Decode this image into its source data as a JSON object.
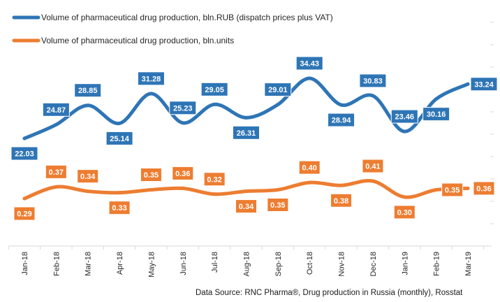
{
  "chart_data": {
    "type": "line",
    "categories": [
      "Jan-18",
      "Feb-18",
      "Mar-18",
      "Apr-18",
      "May-18",
      "Jun-18",
      "Jul-18",
      "Aug-18",
      "Sep-18",
      "Oct-18",
      "Nov-18",
      "Dec-18",
      "Jan-19",
      "Feb-19",
      "Mar-19"
    ],
    "series": [
      {
        "name": "Volume of pharmaceutical drug production, bln.RUB (dispatch prices plus VAT)",
        "color": "#2e75b6",
        "values": [
          22.03,
          24.87,
          28.85,
          25.14,
          31.28,
          25.23,
          29.05,
          26.31,
          29.01,
          34.43,
          28.94,
          30.83,
          23.46,
          30.16,
          33.24
        ],
        "labels": [
          "22.03",
          "24.87",
          "28.85",
          "25.14",
          "31.28",
          "25.23",
          "29.05",
          "26.31",
          "29.01",
          "34.43",
          "28.94",
          "30.83",
          "23.46",
          "30.16",
          "33.24"
        ]
      },
      {
        "name": "Volume of pharmaceutical drug production, bln.units",
        "color": "#ed7d31",
        "values": [
          0.29,
          0.37,
          0.34,
          0.33,
          0.35,
          0.36,
          0.32,
          0.34,
          0.35,
          0.4,
          0.38,
          0.41,
          0.3,
          0.35,
          0.36
        ],
        "labels": [
          "0.29",
          "0.37",
          "0.34",
          "0.33",
          "0.35",
          "0.36",
          "0.32",
          "0.34",
          "0.35",
          "0.40",
          "0.38",
          "0.41",
          "0.30",
          "0.35",
          "0.36"
        ]
      }
    ],
    "source": "Data Source: RNC Pharma®, Drug production in Russia (monthly), Rosstat",
    "legend_position": "top-left",
    "grid": false,
    "smooth": true
  }
}
